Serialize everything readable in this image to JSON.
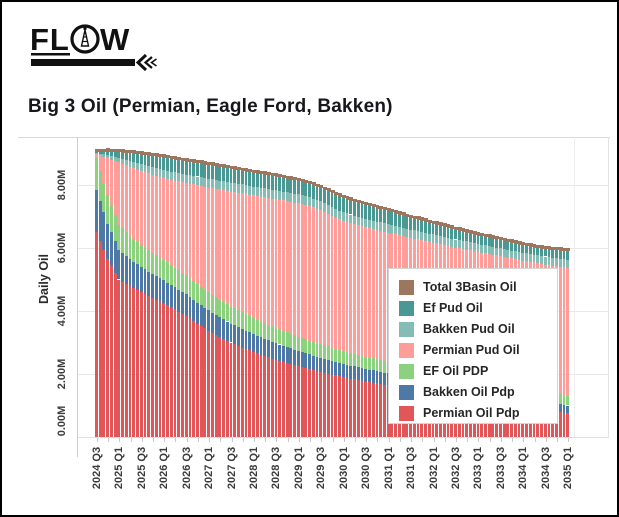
{
  "logo": {
    "text": "FLOW"
  },
  "header": {
    "title": "Big 3 Oil (Permian, Eagle Ford, Bakken)"
  },
  "chart_data": {
    "type": "bar",
    "stacked": true,
    "title": "Big 3 Oil (Permian, Eagle Ford, Bakken)",
    "ylabel": "Daily Oil",
    "xlabel": "",
    "ylim": [
      0,
      9.5
    ],
    "y_ticks": [
      {
        "value": 0,
        "label": "0.00M"
      },
      {
        "value": 2,
        "label": "2.00M"
      },
      {
        "value": 4,
        "label": "4.00M"
      },
      {
        "value": 6,
        "label": "6.00M"
      },
      {
        "value": 8,
        "label": "8.00M"
      }
    ],
    "grid": "horizontal",
    "bar_resolution": "monthly (interpolated between quarterly anchors)",
    "categories": [
      "2024 Q3",
      "2024 Q4",
      "2025 Q1",
      "2025 Q2",
      "2025 Q3",
      "2025 Q4",
      "2026 Q1",
      "2026 Q2",
      "2026 Q3",
      "2026 Q4",
      "2027 Q1",
      "2027 Q2",
      "2027 Q3",
      "2027 Q4",
      "2028 Q1",
      "2028 Q2",
      "2028 Q3",
      "2028 Q4",
      "2029 Q1",
      "2029 Q2",
      "2029 Q3",
      "2029 Q4",
      "2030 Q1",
      "2030 Q2",
      "2030 Q3",
      "2030 Q4",
      "2031 Q1",
      "2031 Q2",
      "2031 Q3",
      "2031 Q4",
      "2032 Q1",
      "2032 Q2",
      "2032 Q3",
      "2032 Q4",
      "2033 Q1",
      "2033 Q2",
      "2033 Q3",
      "2033 Q4",
      "2034 Q1",
      "2034 Q2",
      "2034 Q3",
      "2034 Q4",
      "2035 Q1"
    ],
    "x_tick_labels": [
      "2024 Q3",
      "2025 Q1",
      "2025 Q3",
      "2026 Q1",
      "2026 Q3",
      "2027 Q1",
      "2027 Q3",
      "2028 Q1",
      "2028 Q3",
      "2029 Q1",
      "2029 Q3",
      "2030 Q1",
      "2030 Q3",
      "2031 Q1",
      "2031 Q3",
      "2032 Q1",
      "2032 Q3",
      "2033 Q1",
      "2033 Q3",
      "2034 Q1",
      "2034 Q3",
      "2035 Q1"
    ],
    "series": [
      {
        "name": "Permian Oil Pdp",
        "color": "#E15759",
        "values": [
          6.5,
          5.65,
          5.0,
          4.78,
          4.6,
          4.42,
          4.25,
          4.05,
          3.85,
          3.6,
          3.38,
          3.18,
          3.0,
          2.84,
          2.7,
          2.57,
          2.45,
          2.34,
          2.24,
          2.15,
          2.06,
          1.98,
          1.9,
          1.83,
          1.76,
          1.7,
          1.64,
          1.58,
          1.52,
          1.47,
          1.42,
          1.37,
          1.32,
          1.27,
          1.22,
          1.17,
          1.12,
          1.07,
          1.02,
          0.96,
          0.9,
          0.83,
          0.75
        ]
      },
      {
        "name": "Bakken Oil Pdp",
        "color": "#4E79A7",
        "values": [
          1.35,
          1.12,
          0.95,
          0.87,
          0.8,
          0.76,
          0.73,
          0.7,
          0.68,
          0.66,
          0.64,
          0.62,
          0.6,
          0.59,
          0.57,
          0.55,
          0.53,
          0.51,
          0.49,
          0.47,
          0.46,
          0.44,
          0.42,
          0.41,
          0.4,
          0.39,
          0.38,
          0.36,
          0.35,
          0.34,
          0.34,
          0.33,
          0.32,
          0.32,
          0.31,
          0.3,
          0.3,
          0.29,
          0.29,
          0.28,
          0.27,
          0.26,
          0.25
        ]
      },
      {
        "name": "EF Oil PDP",
        "color": "#8CD17D",
        "values": [
          1.0,
          0.9,
          0.79,
          0.74,
          0.7,
          0.67,
          0.65,
          0.62,
          0.6,
          0.59,
          0.57,
          0.56,
          0.54,
          0.53,
          0.51,
          0.5,
          0.48,
          0.47,
          0.45,
          0.44,
          0.43,
          0.42,
          0.41,
          0.4,
          0.39,
          0.38,
          0.37,
          0.36,
          0.35,
          0.35,
          0.34,
          0.34,
          0.33,
          0.33,
          0.32,
          0.32,
          0.31,
          0.31,
          0.3,
          0.3,
          0.29,
          0.29,
          0.29
        ]
      },
      {
        "name": "Permian Pud Oil",
        "color": "#FF9D9A",
        "values": [
          0.14,
          1.18,
          1.98,
          2.18,
          2.34,
          2.48,
          2.6,
          2.77,
          2.93,
          3.15,
          3.33,
          3.5,
          3.65,
          3.78,
          3.89,
          3.99,
          4.09,
          4.17,
          4.24,
          4.27,
          4.25,
          4.18,
          4.13,
          4.12,
          4.11,
          4.1,
          4.1,
          4.1,
          4.1,
          4.09,
          4.07,
          4.05,
          4.04,
          4.03,
          4.02,
          4.02,
          4.01,
          4.0,
          3.99,
          4.0,
          4.01,
          4.04,
          4.08
        ]
      },
      {
        "name": "Bakken Pud Oil",
        "color": "#86BCB6",
        "values": [
          0.03,
          0.1,
          0.15,
          0.19,
          0.22,
          0.24,
          0.25,
          0.26,
          0.27,
          0.27,
          0.28,
          0.28,
          0.28,
          0.28,
          0.28,
          0.28,
          0.28,
          0.28,
          0.28,
          0.28,
          0.28,
          0.27,
          0.27,
          0.27,
          0.27,
          0.27,
          0.27,
          0.26,
          0.26,
          0.26,
          0.26,
          0.26,
          0.26,
          0.26,
          0.26,
          0.25,
          0.25,
          0.25,
          0.25,
          0.25,
          0.26,
          0.26,
          0.26
        ]
      },
      {
        "name": "Ef Pud Oil",
        "color": "#499894",
        "values": [
          0.03,
          0.11,
          0.18,
          0.25,
          0.31,
          0.35,
          0.39,
          0.41,
          0.42,
          0.43,
          0.43,
          0.44,
          0.44,
          0.44,
          0.44,
          0.44,
          0.44,
          0.43,
          0.43,
          0.42,
          0.42,
          0.45,
          0.45,
          0.44,
          0.43,
          0.42,
          0.41,
          0.4,
          0.38,
          0.36,
          0.34,
          0.33,
          0.31,
          0.29,
          0.27,
          0.27,
          0.26,
          0.25,
          0.24,
          0.24,
          0.24,
          0.25,
          0.27
        ]
      }
    ],
    "total_line": {
      "name": "Total 3Basin Oil",
      "color": "#9D7660",
      "values": [
        9.05,
        9.06,
        9.05,
        9.01,
        8.97,
        8.92,
        8.87,
        8.81,
        8.75,
        8.7,
        8.63,
        8.58,
        8.51,
        8.45,
        8.39,
        8.33,
        8.27,
        8.2,
        8.13,
        8.03,
        7.9,
        7.74,
        7.58,
        7.47,
        7.36,
        7.26,
        7.17,
        7.06,
        6.96,
        6.87,
        6.77,
        6.68,
        6.58,
        6.49,
        6.4,
        6.33,
        6.25,
        6.17,
        6.09,
        6.02,
        5.97,
        5.93,
        5.9
      ]
    },
    "legend": {
      "position": "inside-right",
      "entries": [
        {
          "label": "Total 3Basin Oil",
          "color": "#9D7660"
        },
        {
          "label": "Ef Pud Oil",
          "color": "#499894"
        },
        {
          "label": "Bakken Pud Oil",
          "color": "#86BCB6"
        },
        {
          "label": "Permian Pud Oil",
          "color": "#FF9D9A"
        },
        {
          "label": "EF Oil PDP",
          "color": "#8CD17D"
        },
        {
          "label": "Bakken Oil Pdp",
          "color": "#4E79A7"
        },
        {
          "label": "Permian Oil Pdp",
          "color": "#E15759"
        }
      ]
    }
  }
}
